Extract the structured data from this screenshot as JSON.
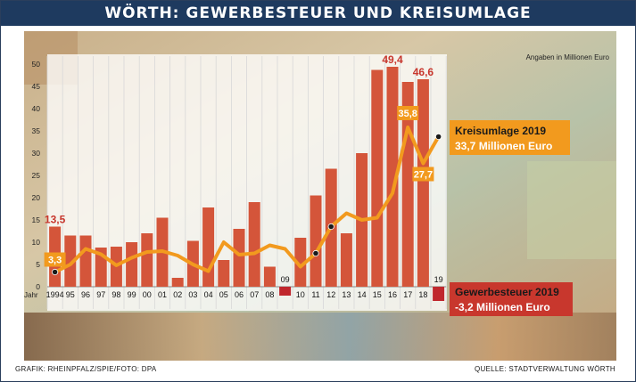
{
  "title": "WÖRTH: GEWERBESTEUER UND KREISUMLAGE",
  "unit_note": "Angaben in Millionen Euro",
  "credit": "GRAFIK: RHEINPFALZ/SPIE/FOTO: DPA",
  "source": "QUELLE: STADTVERWALTUNG WÖRTH",
  "colors": {
    "bar": "#d4553a",
    "line": "#f29a1e",
    "title_bg": "#1e3a5f",
    "callout_red": "#c8372d",
    "negative": "#c0272d"
  },
  "chart_data": {
    "type": "bar",
    "x_axis_prefix": "Jahr",
    "categories": [
      "1994",
      "95",
      "96",
      "97",
      "98",
      "99",
      "00",
      "01",
      "02",
      "03",
      "04",
      "05",
      "06",
      "07",
      "08",
      "09",
      "10",
      "11",
      "12",
      "13",
      "14",
      "15",
      "16",
      "17",
      "18",
      "19"
    ],
    "ylim": [
      -3.2,
      50
    ],
    "yticks": [
      "0",
      "5",
      "10",
      "15",
      "20",
      "25",
      "30",
      "35",
      "40",
      "45",
      "50"
    ],
    "series": [
      {
        "name": "Gewerbesteuer",
        "type": "bar",
        "values": [
          13.5,
          11.5,
          11.5,
          8.8,
          9,
          10,
          12,
          15.5,
          2,
          10.3,
          17.8,
          6,
          13,
          19,
          4.5,
          -2,
          11,
          20.5,
          26.5,
          12,
          30,
          48.7,
          49.4,
          46,
          46.6,
          -3.2
        ]
      },
      {
        "name": "Kreisumlage",
        "type": "line",
        "values": [
          3.3,
          5,
          8.5,
          7.3,
          4.8,
          6.5,
          7.8,
          8,
          7,
          5,
          3.5,
          10,
          7.2,
          7.5,
          9.3,
          8.5,
          4.5,
          7.5,
          13.5,
          16.5,
          15,
          15.5,
          21,
          35.8,
          27.7,
          33.7
        ]
      }
    ],
    "value_labels": [
      {
        "series": "Gewerbesteuer",
        "category": "1994",
        "text": "13,5"
      },
      {
        "series": "Gewerbesteuer",
        "category": "16",
        "text": "49,4"
      },
      {
        "series": "Gewerbesteuer",
        "category": "18",
        "text": "46,6"
      },
      {
        "series": "Kreisumlage",
        "category": "1994",
        "text": "3,3"
      },
      {
        "series": "Kreisumlage",
        "category": "17",
        "text": "35,8"
      },
      {
        "series": "Kreisumlage",
        "category": "18",
        "text": "27,7"
      }
    ],
    "callouts": {
      "kreisumlage": {
        "line1": "Kreisumlage 2019",
        "line2": "33,7 Millionen Euro"
      },
      "gewerbesteuer": {
        "line1": "Gewerbesteuer 2019",
        "line2": "-3,2 Millionen Euro"
      }
    },
    "grid": true
  }
}
